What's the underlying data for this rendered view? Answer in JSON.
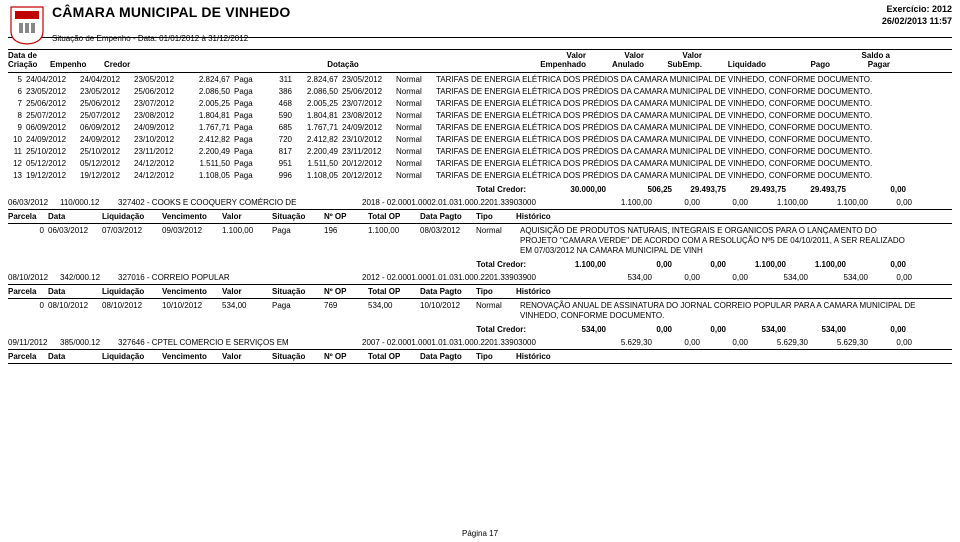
{
  "header": {
    "title": "CÂMARA MUNICIPAL DE VINHEDO",
    "subtitle": "Situação de Empenho - Data: 01/01/2012 à 31/12/2012",
    "exercicio": "Exercício: 2012",
    "datetime": "26/02/2013 11:57"
  },
  "cols": {
    "c1": "Data de\nCriação",
    "c2": "Empenho",
    "c3": "Credor",
    "c4": "Dotação",
    "c5": "Valor\nEmpenhado",
    "c6": "Valor\nAnulado",
    "c7": "Valor\nSubEmp.",
    "c8": "Liquidado",
    "c9": "Pago",
    "c10": "Saldo a\nPagar"
  },
  "rows": [
    {
      "n": "5",
      "d1": "24/04/2012",
      "d2": "24/04/2012",
      "d3": "23/05/2012",
      "v1": "2.824,67",
      "sit": "Paga",
      "nop": "311",
      "tot": "2.824,67",
      "dp": "23/05/2012",
      "tp": "Normal",
      "desc": "TARIFAS DE ENERGIA ELÉTRICA DOS PRÉDIOS DA CAMARA MUNICIPAL DE VINHEDO, CONFORME DOCUMENTO."
    },
    {
      "n": "6",
      "d1": "23/05/2012",
      "d2": "23/05/2012",
      "d3": "25/06/2012",
      "v1": "2.086,50",
      "sit": "Paga",
      "nop": "386",
      "tot": "2.086,50",
      "dp": "25/06/2012",
      "tp": "Normal",
      "desc": "TARIFAS DE ENERGIA ELÉTRICA DOS PRÉDIOS DA CAMARA MUNICIPAL DE VINHEDO, CONFORME DOCUMENTO."
    },
    {
      "n": "7",
      "d1": "25/06/2012",
      "d2": "25/06/2012",
      "d3": "23/07/2012",
      "v1": "2.005,25",
      "sit": "Paga",
      "nop": "468",
      "tot": "2.005,25",
      "dp": "23/07/2012",
      "tp": "Normal",
      "desc": "TARIFAS DE ENERGIA ELÉTRICA DOS PRÉDIOS DA CAMARA MUNICIPAL DE VINHEDO, CONFORME DOCUMENTO."
    },
    {
      "n": "8",
      "d1": "25/07/2012",
      "d2": "25/07/2012",
      "d3": "23/08/2012",
      "v1": "1.804,81",
      "sit": "Paga",
      "nop": "590",
      "tot": "1.804,81",
      "dp": "23/08/2012",
      "tp": "Normal",
      "desc": "TARIFAS DE ENERGIA ELÉTRICA DOS PRÉDIOS DA CAMARA MUNICIPAL DE VINHEDO, CONFORME DOCUMENTO."
    },
    {
      "n": "9",
      "d1": "06/09/2012",
      "d2": "06/09/2012",
      "d3": "24/09/2012",
      "v1": "1.767,71",
      "sit": "Paga",
      "nop": "685",
      "tot": "1.767,71",
      "dp": "24/09/2012",
      "tp": "Normal",
      "desc": "TARIFAS DE ENERGIA ELÉTRICA DOS PRÉDIOS DA CAMARA MUNICIPAL DE VINHEDO, CONFORME DOCUMENTO."
    },
    {
      "n": "10",
      "d1": "24/09/2012",
      "d2": "24/09/2012",
      "d3": "23/10/2012",
      "v1": "2.412,82",
      "sit": "Paga",
      "nop": "720",
      "tot": "2.412,82",
      "dp": "23/10/2012",
      "tp": "Normal",
      "desc": "TARIFAS DE ENERGIA ELÉTRICA DOS PRÉDIOS DA CAMARA MUNICIPAL DE VINHEDO, CONFORME DOCUMENTO."
    },
    {
      "n": "11",
      "d1": "25/10/2012",
      "d2": "25/10/2012",
      "d3": "23/11/2012",
      "v1": "2.200,49",
      "sit": "Paga",
      "nop": "817",
      "tot": "2.200,49",
      "dp": "23/11/2012",
      "tp": "Normal",
      "desc": "TARIFAS DE ENERGIA ELÉTRICA DOS PRÉDIOS DA CAMARA MUNICIPAL DE VINHEDO, CONFORME DOCUMENTO."
    },
    {
      "n": "12",
      "d1": "05/12/2012",
      "d2": "05/12/2012",
      "d3": "24/12/2012",
      "v1": "1.511,50",
      "sit": "Paga",
      "nop": "951",
      "tot": "1.511,50",
      "dp": "20/12/2012",
      "tp": "Normal",
      "desc": "TARIFAS DE ENERGIA ELÉTRICA DOS PRÉDIOS DA CAMARA MUNICIPAL DE VINHEDO, CONFORME DOCUMENTO."
    },
    {
      "n": "13",
      "d1": "19/12/2012",
      "d2": "19/12/2012",
      "d3": "24/12/2012",
      "v1": "1.108,05",
      "sit": "Paga",
      "nop": "996",
      "tot": "1.108,05",
      "dp": "20/12/2012",
      "tp": "Normal",
      "desc": "TARIFAS DE ENERGIA ELÉTRICA DOS PRÉDIOS DA CAMARA MUNICIPAL DE VINHEDO, CONFORME DOCUMENTO."
    }
  ],
  "total1": {
    "label": "Total Credor:",
    "tot": "30.000,00",
    "a": "506,25",
    "b": "29.493,75",
    "c": "29.493,75",
    "d": "29.493,75",
    "e": "0,00"
  },
  "emp1": {
    "data": "06/03/2012",
    "num": "110/000.12",
    "credor": "327402 - COOKS E COOQUERY COMÉRCIO DE",
    "dot": "2018 - 02.0001.0002.01.031.000.2201.33903000",
    "v": "1.100,00",
    "a": "0,00",
    "b": "0,00",
    "c": "1.100,00",
    "d": "1.100,00",
    "e": "0,00"
  },
  "parc_head": {
    "c1": "Parcela",
    "c2": "Data",
    "c3": "Liquidação",
    "c4": "Vencimento",
    "c5": "Valor",
    "c6": "Situação",
    "c7": "Nº OP",
    "c8": "Total OP",
    "c9": "Data Pagto",
    "c10": "Tipo",
    "c11": "Histórico"
  },
  "parc1": {
    "n": "0",
    "d1": "06/03/2012",
    "d2": "07/03/2012",
    "d3": "09/03/2012",
    "v": "1.100,00",
    "sit": "Paga",
    "nop": "196",
    "tot": "1.100,00",
    "dp": "08/03/2012",
    "tp": "Normal",
    "desc": "AQUISIÇÃO DE PRODUTOS NATURAIS, INTEGRAIS E ORGANICOS PARA O LANÇAMENTO DO PROJETO \"CAMARA VERDE\" DE ACORDO COM A RESOLUÇÃO Nº5 DE 04/10/2011, A SER REALIZADO EM 07/03/2012 NA CAMARA MUNICIPAL DE VINH"
  },
  "total2": {
    "label": "Total Credor:",
    "tot": "1.100,00",
    "a": "0,00",
    "b": "0,00",
    "c": "1.100,00",
    "d": "1.100,00",
    "e": "0,00"
  },
  "emp2": {
    "data": "08/10/2012",
    "num": "342/000.12",
    "credor": "327016 - CORREIO POPULAR",
    "dot": "2012 - 02.0001.0001.01.031.000.2201.33903900",
    "v": "534,00",
    "a": "0,00",
    "b": "0,00",
    "c": "534,00",
    "d": "534,00",
    "e": "0,00"
  },
  "parc2": {
    "n": "0",
    "d1": "08/10/2012",
    "d2": "08/10/2012",
    "d3": "10/10/2012",
    "v": "534,00",
    "sit": "Paga",
    "nop": "769",
    "tot": "534,00",
    "dp": "10/10/2012",
    "tp": "Normal",
    "desc": "RENOVAÇÃO ANUAL DE ASSINATURA DO JORNAL CORREIO POPULAR PARA A CAMARA MUNICIPAL DE VINHEDO, CONFORME DOCUMENTO."
  },
  "total3": {
    "label": "Total Credor:",
    "tot": "534,00",
    "a": "0,00",
    "b": "0,00",
    "c": "534,00",
    "d": "534,00",
    "e": "0,00"
  },
  "emp3": {
    "data": "09/11/2012",
    "num": "385/000.12",
    "credor": "327646 - CPTEL COMERCIO E SERVIÇOS EM",
    "dot": "2007 - 02.0001.0001.01.031.000.2201.33903000",
    "v": "5.629,30",
    "a": "0,00",
    "b": "0,00",
    "c": "5.629,30",
    "d": "5.629,30",
    "e": "0,00"
  },
  "footer": "Página 17"
}
